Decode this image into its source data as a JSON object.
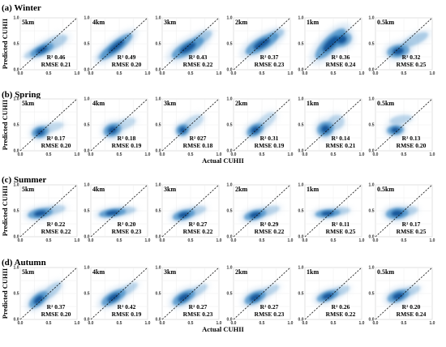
{
  "chart_data": {
    "type": "density-scatter",
    "xlabel": "Actual CUHII",
    "ylabel": "Predicted CUHII",
    "xlim": [
      0,
      1.0
    ],
    "ylim": [
      0,
      1.0
    ],
    "ticks": [
      "0.0",
      "0.5",
      "1.0"
    ],
    "reference_line": "1:1 dashed diagonal",
    "colormap": [
      "#ffffff",
      "#08519c"
    ],
    "seasons": [
      {
        "label": "(a) Winter",
        "panels": [
          {
            "res": "5km",
            "r2_label": "R² 0.46",
            "rmse_label": "RMSE 0.21",
            "blobs": [
              {
                "x": 0.38,
                "y": 0.38,
                "w": 0.22,
                "h": 0.07,
                "rot": 25,
                "d": 1.0
              },
              {
                "x": 0.6,
                "y": 0.52,
                "w": 0.25,
                "h": 0.08,
                "rot": 25,
                "d": 0.45
              },
              {
                "x": 0.2,
                "y": 0.3,
                "w": 0.14,
                "h": 0.05,
                "rot": 20,
                "d": 0.35
              }
            ]
          },
          {
            "res": "4km",
            "r2_label": "R² 0.49",
            "rmse_label": "RMSE 0.20",
            "blobs": [
              {
                "x": 0.45,
                "y": 0.45,
                "w": 0.35,
                "h": 0.08,
                "rot": 38,
                "d": 1.0
              },
              {
                "x": 0.25,
                "y": 0.3,
                "w": 0.15,
                "h": 0.05,
                "rot": 35,
                "d": 0.5
              }
            ]
          },
          {
            "res": "3km",
            "r2_label": "R² 0.43",
            "rmse_label": "RMSE 0.22",
            "blobs": [
              {
                "x": 0.45,
                "y": 0.42,
                "w": 0.32,
                "h": 0.09,
                "rot": 30,
                "d": 1.0
              },
              {
                "x": 0.7,
                "y": 0.62,
                "w": 0.2,
                "h": 0.07,
                "rot": 30,
                "d": 0.5
              }
            ]
          },
          {
            "res": "2km",
            "r2_label": "R² 0.37",
            "rmse_label": "RMSE 0.23",
            "blobs": [
              {
                "x": 0.5,
                "y": 0.5,
                "w": 0.33,
                "h": 0.09,
                "rot": 30,
                "d": 1.0
              },
              {
                "x": 0.75,
                "y": 0.68,
                "w": 0.15,
                "h": 0.06,
                "rot": 25,
                "d": 0.45
              }
            ]
          },
          {
            "res": "1km",
            "r2_label": "R² 0.36",
            "rmse_label": "RMSE 0.24",
            "blobs": [
              {
                "x": 0.45,
                "y": 0.5,
                "w": 0.36,
                "h": 0.1,
                "rot": 45,
                "d": 1.0
              },
              {
                "x": 0.65,
                "y": 0.58,
                "w": 0.18,
                "h": 0.1,
                "rot": 20,
                "d": 0.9
              }
            ]
          },
          {
            "res": "0.5km",
            "r2_label": "R² 0.32",
            "rmse_label": "RMSE 0.25",
            "blobs": [
              {
                "x": 0.4,
                "y": 0.36,
                "w": 0.2,
                "h": 0.09,
                "rot": 10,
                "d": 0.95
              },
              {
                "x": 0.7,
                "y": 0.58,
                "w": 0.25,
                "h": 0.07,
                "rot": 25,
                "d": 0.5
              }
            ]
          }
        ]
      },
      {
        "label": "(b) Spring",
        "panels": [
          {
            "res": "5km",
            "r2_label": "R² 0.17",
            "rmse_label": "RMSE 0.20",
            "blobs": [
              {
                "x": 0.35,
                "y": 0.36,
                "w": 0.15,
                "h": 0.08,
                "rot": 15,
                "d": 1.0
              },
              {
                "x": 0.55,
                "y": 0.45,
                "w": 0.22,
                "h": 0.06,
                "rot": 15,
                "d": 0.35
              }
            ]
          },
          {
            "res": "4km",
            "r2_label": "R² 0.18",
            "rmse_label": "RMSE 0.19",
            "blobs": [
              {
                "x": 0.38,
                "y": 0.4,
                "w": 0.16,
                "h": 0.09,
                "rot": 20,
                "d": 1.0
              },
              {
                "x": 0.6,
                "y": 0.52,
                "w": 0.2,
                "h": 0.07,
                "rot": 20,
                "d": 0.35
              }
            ]
          },
          {
            "res": "3km",
            "r2_label": "R² 027",
            "rmse_label": "RMSE 0.18",
            "blobs": [
              {
                "x": 0.36,
                "y": 0.4,
                "w": 0.12,
                "h": 0.08,
                "rot": 20,
                "d": 1.0
              },
              {
                "x": 0.55,
                "y": 0.55,
                "w": 0.2,
                "h": 0.08,
                "rot": 30,
                "d": 0.35
              }
            ]
          },
          {
            "res": "2km",
            "r2_label": "R² 0.31",
            "rmse_label": "RMSE 0.19",
            "blobs": [
              {
                "x": 0.38,
                "y": 0.4,
                "w": 0.16,
                "h": 0.08,
                "rot": 30,
                "d": 1.0
              },
              {
                "x": 0.58,
                "y": 0.58,
                "w": 0.2,
                "h": 0.08,
                "rot": 40,
                "d": 0.35
              }
            ]
          },
          {
            "res": "1km",
            "r2_label": "R² 0.14",
            "rmse_label": "RMSE 0.21",
            "blobs": [
              {
                "x": 0.36,
                "y": 0.42,
                "w": 0.15,
                "h": 0.1,
                "rot": 20,
                "d": 1.0
              },
              {
                "x": 0.55,
                "y": 0.55,
                "w": 0.15,
                "h": 0.1,
                "rot": 25,
                "d": 0.4
              }
            ]
          },
          {
            "res": "0.5km",
            "r2_label": "R² 0.13",
            "rmse_label": "RMSE 0.20",
            "blobs": [
              {
                "x": 0.35,
                "y": 0.4,
                "w": 0.15,
                "h": 0.07,
                "rot": 5,
                "d": 1.0
              },
              {
                "x": 0.45,
                "y": 0.6,
                "w": 0.2,
                "h": 0.06,
                "rot": 10,
                "d": 0.4
              }
            ]
          }
        ]
      },
      {
        "label": "(c) Summer",
        "panels": [
          {
            "res": "5km",
            "r2_label": "R² 0.22",
            "rmse_label": "RMSE 0.22",
            "blobs": [
              {
                "x": 0.35,
                "y": 0.45,
                "w": 0.22,
                "h": 0.07,
                "rot": 10,
                "d": 1.0
              },
              {
                "x": 0.6,
                "y": 0.52,
                "w": 0.2,
                "h": 0.06,
                "rot": 10,
                "d": 0.4
              }
            ]
          },
          {
            "res": "4km",
            "r2_label": "R² 0.20",
            "rmse_label": "RMSE 0.23",
            "blobs": [
              {
                "x": 0.38,
                "y": 0.46,
                "w": 0.24,
                "h": 0.06,
                "rot": 8,
                "d": 1.0
              },
              {
                "x": 0.62,
                "y": 0.5,
                "w": 0.18,
                "h": 0.05,
                "rot": 8,
                "d": 0.4
              }
            ]
          },
          {
            "res": "3km",
            "r2_label": "R² 0.27",
            "rmse_label": "RMSE 0.22",
            "blobs": [
              {
                "x": 0.38,
                "y": 0.42,
                "w": 0.2,
                "h": 0.07,
                "rot": 15,
                "d": 1.0
              },
              {
                "x": 0.6,
                "y": 0.5,
                "w": 0.18,
                "h": 0.06,
                "rot": 15,
                "d": 0.4
              }
            ]
          },
          {
            "res": "2km",
            "r2_label": "R² 0.29",
            "rmse_label": "RMSE 0.22",
            "blobs": [
              {
                "x": 0.38,
                "y": 0.42,
                "w": 0.2,
                "h": 0.07,
                "rot": 15,
                "d": 1.0
              },
              {
                "x": 0.62,
                "y": 0.5,
                "w": 0.2,
                "h": 0.06,
                "rot": 15,
                "d": 0.4
              }
            ]
          },
          {
            "res": "1km",
            "r2_label": "R² 0.11",
            "rmse_label": "RMSE 0.25",
            "blobs": [
              {
                "x": 0.4,
                "y": 0.45,
                "w": 0.22,
                "h": 0.06,
                "rot": 5,
                "d": 1.0
              },
              {
                "x": 0.65,
                "y": 0.5,
                "w": 0.15,
                "h": 0.05,
                "rot": 5,
                "d": 0.4
              }
            ]
          },
          {
            "res": "0.5km",
            "r2_label": "R² 0.17",
            "rmse_label": "RMSE 0.25",
            "blobs": [
              {
                "x": 0.38,
                "y": 0.45,
                "w": 0.2,
                "h": 0.08,
                "rot": 5,
                "d": 1.0
              },
              {
                "x": 0.6,
                "y": 0.5,
                "w": 0.15,
                "h": 0.06,
                "rot": 10,
                "d": 0.4
              }
            ]
          }
        ]
      },
      {
        "label": "(d) Autumn",
        "panels": [
          {
            "res": "5km",
            "r2_label": "R² 0.37",
            "rmse_label": "RMSE 0.20",
            "blobs": [
              {
                "x": 0.32,
                "y": 0.38,
                "w": 0.2,
                "h": 0.08,
                "rot": 40,
                "d": 1.0
              },
              {
                "x": 0.55,
                "y": 0.55,
                "w": 0.22,
                "h": 0.07,
                "rot": 40,
                "d": 0.45
              }
            ]
          },
          {
            "res": "4km",
            "r2_label": "R² 0.42",
            "rmse_label": "RMSE 0.19",
            "blobs": [
              {
                "x": 0.4,
                "y": 0.42,
                "w": 0.24,
                "h": 0.08,
                "rot": 30,
                "d": 1.0
              },
              {
                "x": 0.65,
                "y": 0.58,
                "w": 0.2,
                "h": 0.06,
                "rot": 30,
                "d": 0.4
              }
            ]
          },
          {
            "res": "3km",
            "r2_label": "R² 0.27",
            "rmse_label": "RMSE 0.23",
            "blobs": [
              {
                "x": 0.38,
                "y": 0.42,
                "w": 0.22,
                "h": 0.08,
                "rot": 30,
                "d": 1.0
              },
              {
                "x": 0.62,
                "y": 0.55,
                "w": 0.2,
                "h": 0.06,
                "rot": 30,
                "d": 0.4
              }
            ]
          },
          {
            "res": "2km",
            "r2_label": "R² 0.27",
            "rmse_label": "RMSE 0.23",
            "blobs": [
              {
                "x": 0.38,
                "y": 0.42,
                "w": 0.2,
                "h": 0.08,
                "rot": 25,
                "d": 1.0
              },
              {
                "x": 0.62,
                "y": 0.55,
                "w": 0.2,
                "h": 0.06,
                "rot": 25,
                "d": 0.4
              }
            ]
          },
          {
            "res": "1km",
            "r2_label": "R² 0.26",
            "rmse_label": "RMSE 0.22",
            "blobs": [
              {
                "x": 0.4,
                "y": 0.45,
                "w": 0.2,
                "h": 0.07,
                "rot": 20,
                "d": 1.0
              },
              {
                "x": 0.62,
                "y": 0.55,
                "w": 0.18,
                "h": 0.06,
                "rot": 20,
                "d": 0.4
              }
            ]
          },
          {
            "res": "0.5km",
            "r2_label": "R² 0.20",
            "rmse_label": "RMSE 0.24",
            "blobs": [
              {
                "x": 0.4,
                "y": 0.45,
                "w": 0.2,
                "h": 0.08,
                "rot": 20,
                "d": 1.0
              },
              {
                "x": 0.62,
                "y": 0.55,
                "w": 0.18,
                "h": 0.06,
                "rot": 20,
                "d": 0.4
              }
            ]
          }
        ]
      }
    ]
  }
}
